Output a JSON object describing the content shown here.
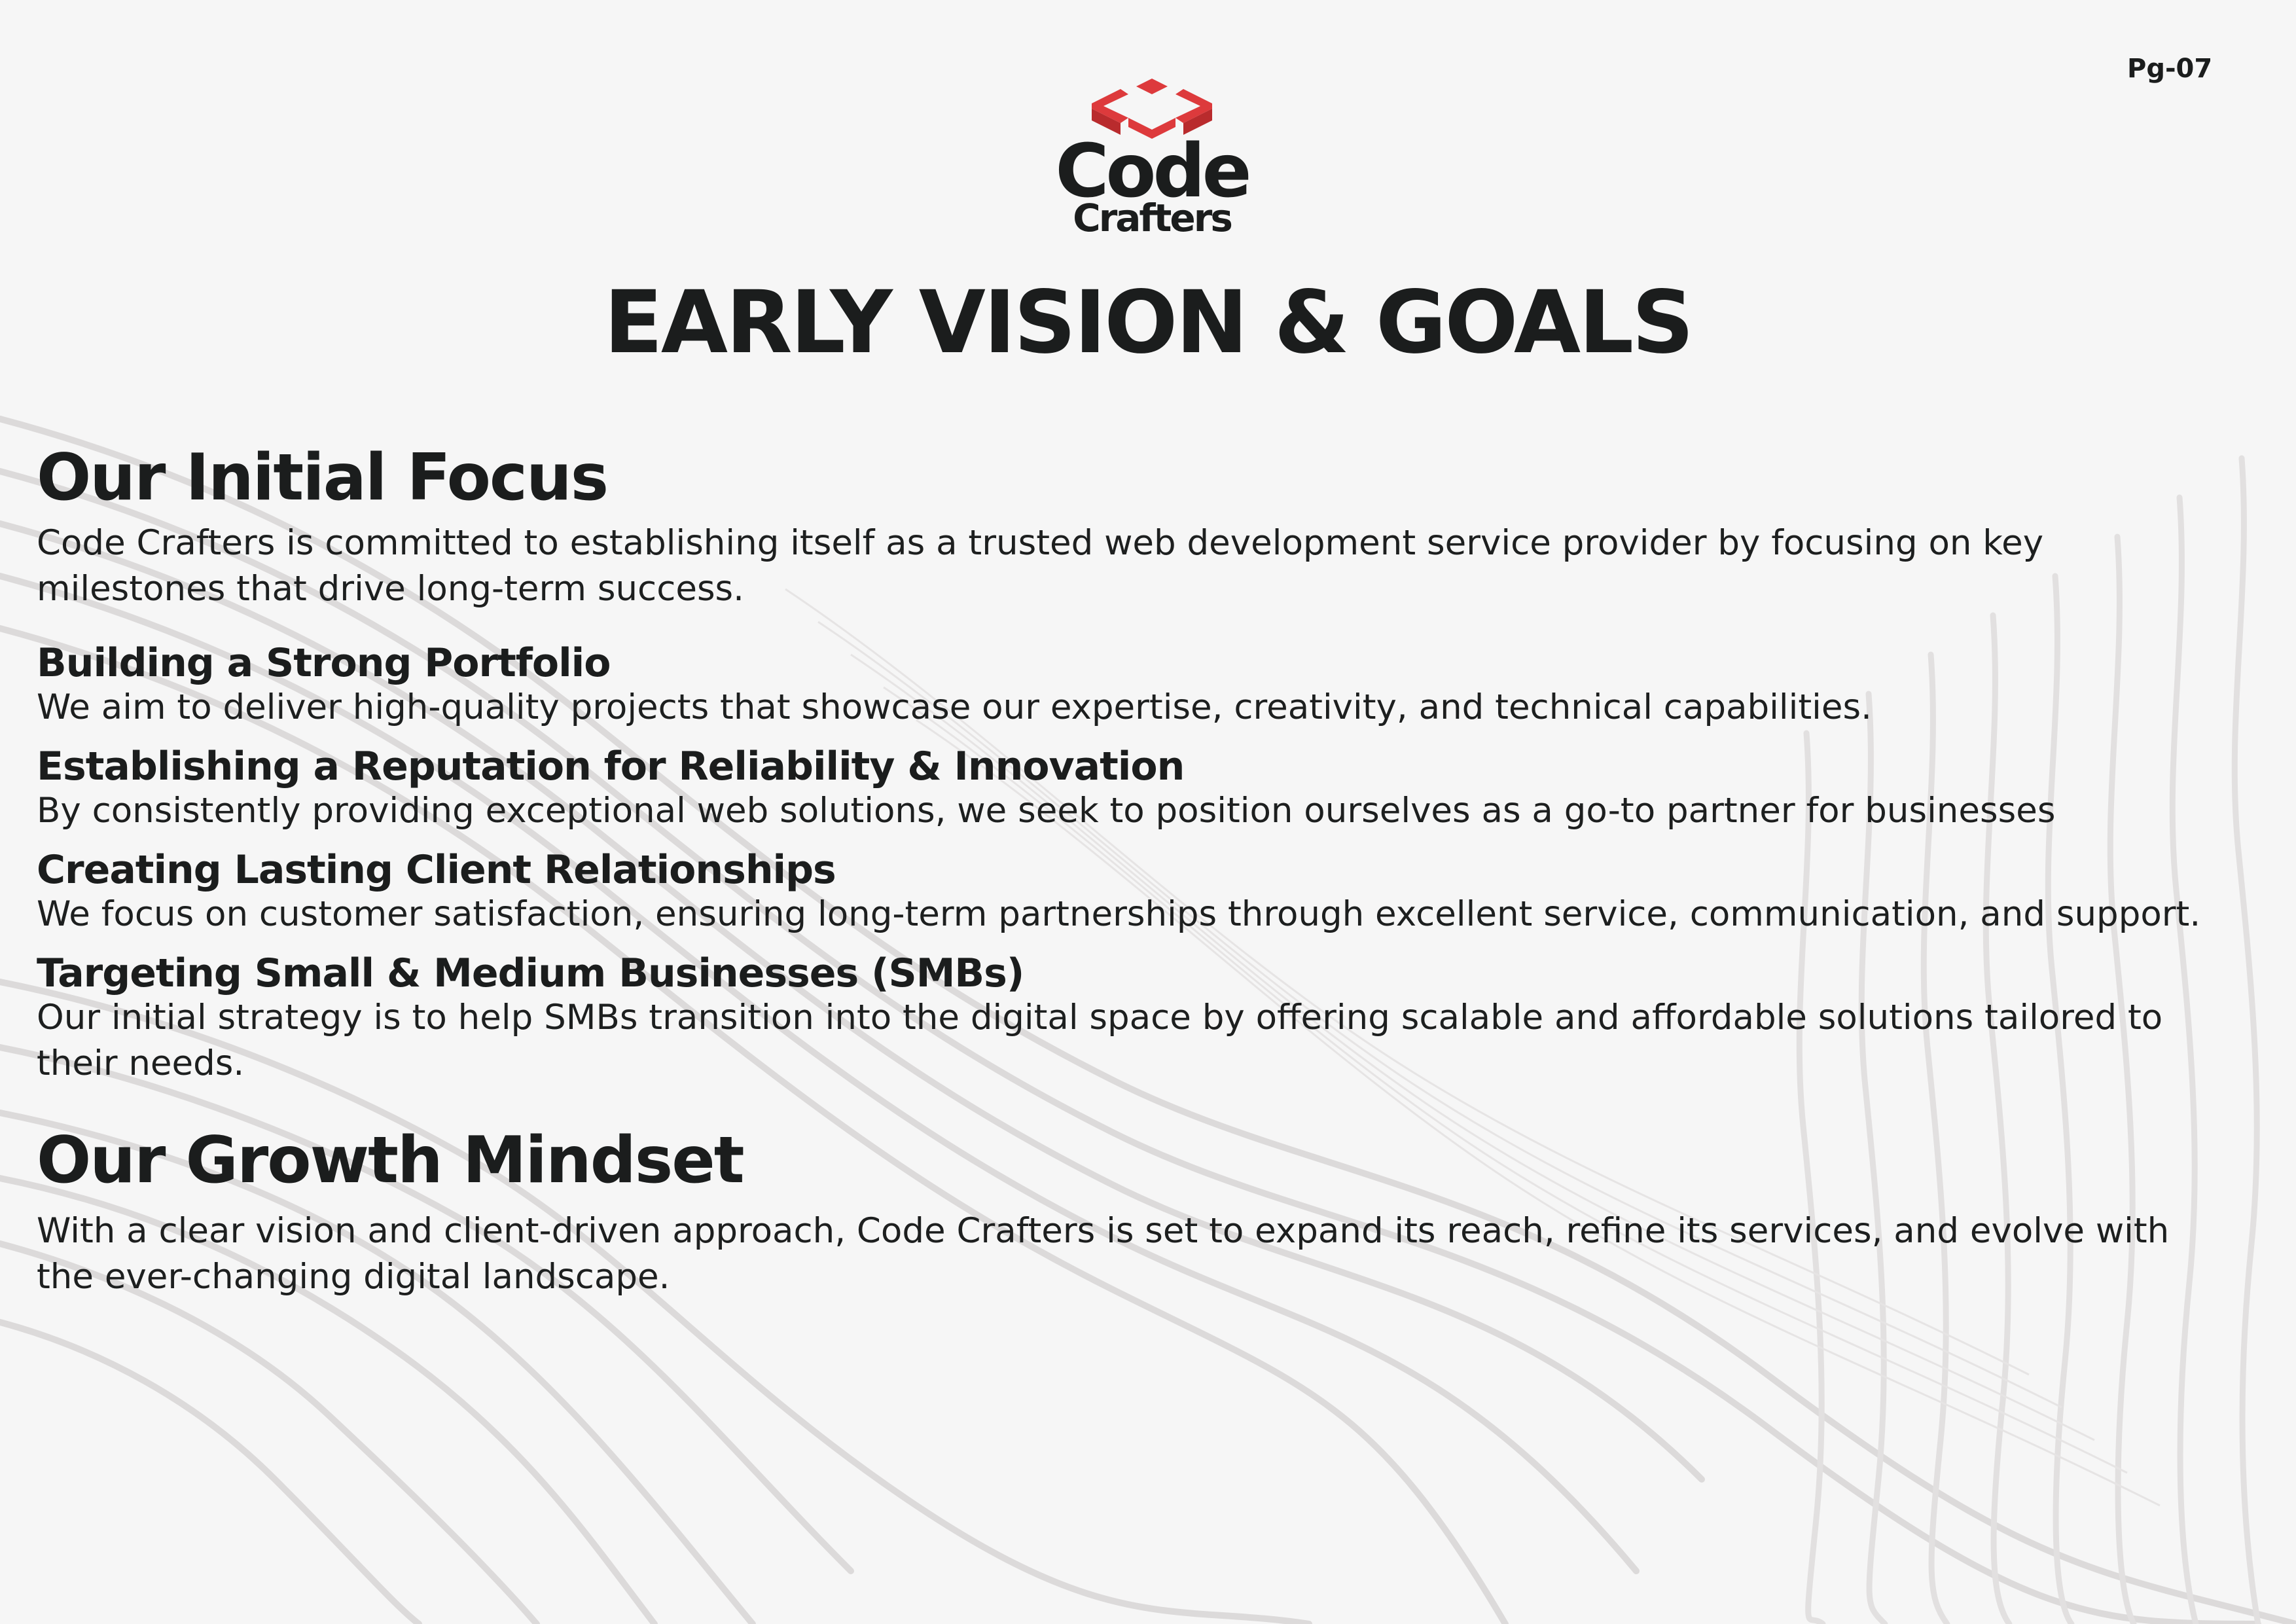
{
  "page_number": "Pg-07",
  "logo": {
    "word_main": "Code",
    "word_sub": "Crafters",
    "icon": "code-brackets-box-icon",
    "accent_color": "#dd3a3c"
  },
  "title": "EARLY VISION & GOALS",
  "initial_focus": {
    "heading": "Our Initial Focus",
    "text": "Code Crafters is committed to establishing itself as a trusted web development service provider by focusing on key milestones that drive long-term success.",
    "items": [
      {
        "heading": "Building a Strong Portfolio",
        "text": "We aim to deliver high-quality projects that showcase our expertise, creativity, and technical capabilities."
      },
      {
        "heading": "Establishing a Reputation for Reliability & Innovation",
        "text": "By consistently providing exceptional web solutions, we seek to position ourselves as a go-to partner for businesses"
      },
      {
        "heading": "Creating Lasting Client Relationships",
        "text": "We focus on customer satisfaction, ensuring long-term partnerships through excellent service, communication, and support."
      },
      {
        "heading": "Targeting Small & Medium Businesses (SMBs)",
        "text": "Our initial strategy is to help SMBs transition into the digital space by offering scalable and affordable solutions tailored to their needs."
      }
    ]
  },
  "growth_mindset": {
    "heading": "Our Growth Mindset",
    "text": "With a clear vision and client-driven approach, Code Crafters is set to expand its reach, refine its services, and evolve with the ever-changing digital landscape."
  },
  "colors": {
    "background": "#f6f6f6",
    "text": "#1b1d1d",
    "wave_lines": "#dcdada"
  }
}
